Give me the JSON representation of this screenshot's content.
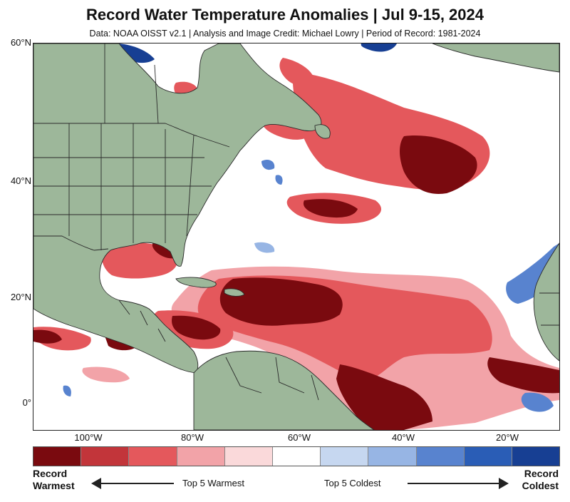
{
  "title": "Record Water Temperature Anomalies | Jul 9-15, 2024",
  "subtitle": "Data: NOAA OISST v2.1 | Analysis and Image Credit: Michael Lowry | Period of Record: 1981-2024",
  "lat_labels": [
    "60°N",
    "40°N",
    "20°N",
    "0°"
  ],
  "lon_labels": [
    "100°W",
    "80°W",
    "60°W",
    "40°W",
    "20°W"
  ],
  "legend": {
    "colors": [
      "#7a0a0f",
      "#c2353a",
      "#e4585c",
      "#f2a3a8",
      "#fad9da",
      "#ffffff",
      "#c6d7f0",
      "#97b5e4",
      "#5883cf",
      "#2a5db6",
      "#173f93"
    ],
    "left_label_line1": "Record",
    "left_label_line2": "Warmest",
    "right_label_line1": "Record",
    "right_label_line2": "Coldest",
    "mid_left": "Top 5 Warmest",
    "mid_right": "Top 5 Coldest"
  },
  "map_colors": {
    "land": "#9db79a",
    "border": "#2a2a2a",
    "ocean": "#ffffff"
  }
}
